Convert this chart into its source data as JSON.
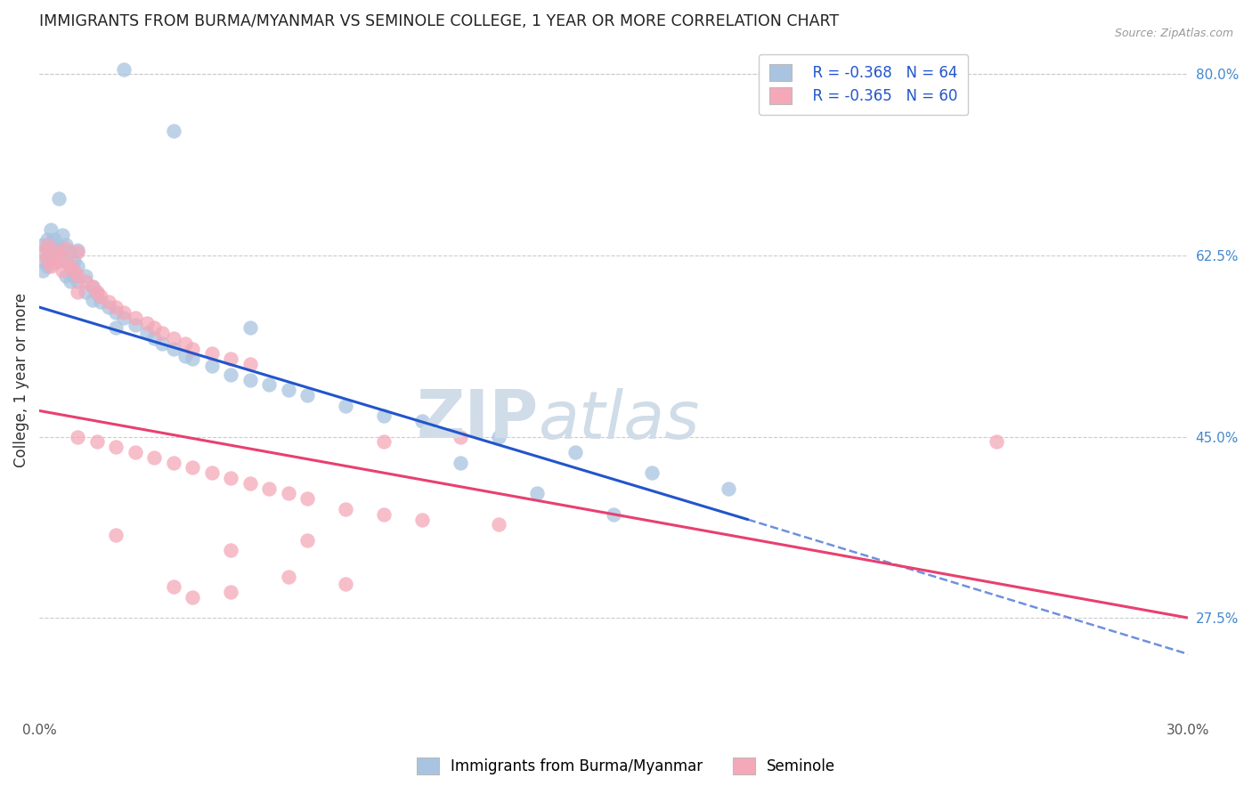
{
  "title": "IMMIGRANTS FROM BURMA/MYANMAR VS SEMINOLE COLLEGE, 1 YEAR OR MORE CORRELATION CHART",
  "source": "Source: ZipAtlas.com",
  "xlabel_bottom_left": "0.0%",
  "xlabel_bottom_right": "30.0%",
  "ylabel": "College, 1 year or more",
  "right_yticks": [
    80.0,
    62.5,
    45.0,
    27.5
  ],
  "legend_blue_R": "R = -0.368",
  "legend_blue_N": "N = 64",
  "legend_pink_R": "R = -0.365",
  "legend_pink_N": "N = 60",
  "legend_label_blue": "Immigrants from Burma/Myanmar",
  "legend_label_pink": "Seminole",
  "blue_color": "#a8c4e0",
  "pink_color": "#f4a8b8",
  "blue_line_color": "#2255cc",
  "pink_line_color": "#e84070",
  "blue_scatter": [
    [
      0.1,
      63.5
    ],
    [
      0.1,
      62.0
    ],
    [
      0.1,
      61.0
    ],
    [
      0.2,
      64.0
    ],
    [
      0.2,
      63.0
    ],
    [
      0.2,
      62.2
    ],
    [
      0.2,
      61.5
    ],
    [
      0.3,
      65.0
    ],
    [
      0.3,
      63.8
    ],
    [
      0.3,
      62.5
    ],
    [
      0.4,
      64.0
    ],
    [
      0.4,
      62.8
    ],
    [
      0.5,
      63.2
    ],
    [
      0.5,
      62.0
    ],
    [
      0.5,
      68.0
    ],
    [
      0.6,
      64.5
    ],
    [
      0.6,
      63.0
    ],
    [
      0.7,
      63.5
    ],
    [
      0.7,
      62.0
    ],
    [
      0.7,
      60.5
    ],
    [
      0.8,
      62.8
    ],
    [
      0.8,
      61.5
    ],
    [
      0.8,
      60.0
    ],
    [
      0.9,
      62.0
    ],
    [
      0.9,
      60.5
    ],
    [
      1.0,
      63.0
    ],
    [
      1.0,
      61.5
    ],
    [
      1.0,
      60.0
    ],
    [
      1.2,
      60.5
    ],
    [
      1.2,
      59.0
    ],
    [
      1.4,
      59.5
    ],
    [
      1.4,
      58.2
    ],
    [
      1.5,
      58.8
    ],
    [
      1.6,
      58.0
    ],
    [
      1.8,
      57.5
    ],
    [
      2.0,
      57.0
    ],
    [
      2.0,
      55.5
    ],
    [
      2.2,
      56.5
    ],
    [
      2.5,
      55.8
    ],
    [
      2.8,
      55.0
    ],
    [
      3.0,
      54.5
    ],
    [
      3.2,
      54.0
    ],
    [
      3.5,
      53.5
    ],
    [
      3.8,
      52.8
    ],
    [
      4.0,
      52.5
    ],
    [
      4.5,
      51.8
    ],
    [
      5.0,
      51.0
    ],
    [
      5.5,
      50.5
    ],
    [
      6.0,
      50.0
    ],
    [
      6.5,
      49.5
    ],
    [
      7.0,
      49.0
    ],
    [
      8.0,
      48.0
    ],
    [
      9.0,
      47.0
    ],
    [
      10.0,
      46.5
    ],
    [
      12.0,
      45.0
    ],
    [
      14.0,
      43.5
    ],
    [
      16.0,
      41.5
    ],
    [
      18.0,
      40.0
    ],
    [
      3.5,
      74.5
    ],
    [
      2.2,
      80.5
    ],
    [
      5.5,
      55.5
    ],
    [
      11.0,
      42.5
    ],
    [
      13.0,
      39.5
    ],
    [
      15.0,
      37.5
    ]
  ],
  "pink_scatter": [
    [
      0.1,
      62.8
    ],
    [
      0.2,
      63.5
    ],
    [
      0.2,
      62.0
    ],
    [
      0.3,
      61.5
    ],
    [
      0.4,
      63.0
    ],
    [
      0.4,
      61.8
    ],
    [
      0.5,
      62.5
    ],
    [
      0.6,
      61.0
    ],
    [
      0.7,
      62.0
    ],
    [
      0.8,
      61.5
    ],
    [
      0.9,
      61.0
    ],
    [
      1.0,
      60.5
    ],
    [
      1.0,
      59.0
    ],
    [
      1.2,
      60.0
    ],
    [
      1.4,
      59.5
    ],
    [
      1.5,
      59.0
    ],
    [
      1.6,
      58.5
    ],
    [
      1.8,
      58.0
    ],
    [
      2.0,
      57.5
    ],
    [
      2.2,
      57.0
    ],
    [
      2.5,
      56.5
    ],
    [
      2.8,
      56.0
    ],
    [
      3.0,
      55.5
    ],
    [
      3.2,
      55.0
    ],
    [
      3.5,
      54.5
    ],
    [
      3.8,
      54.0
    ],
    [
      4.0,
      53.5
    ],
    [
      4.5,
      53.0
    ],
    [
      5.0,
      52.5
    ],
    [
      5.5,
      52.0
    ],
    [
      1.0,
      45.0
    ],
    [
      1.5,
      44.5
    ],
    [
      2.0,
      44.0
    ],
    [
      2.5,
      43.5
    ],
    [
      3.0,
      43.0
    ],
    [
      3.5,
      42.5
    ],
    [
      4.0,
      42.0
    ],
    [
      4.5,
      41.5
    ],
    [
      5.0,
      41.0
    ],
    [
      5.5,
      40.5
    ],
    [
      6.0,
      40.0
    ],
    [
      6.5,
      39.5
    ],
    [
      7.0,
      39.0
    ],
    [
      8.0,
      38.0
    ],
    [
      9.0,
      37.5
    ],
    [
      10.0,
      37.0
    ],
    [
      11.0,
      45.0
    ],
    [
      12.0,
      36.5
    ],
    [
      3.5,
      30.5
    ],
    [
      5.0,
      30.0
    ],
    [
      6.5,
      31.5
    ],
    [
      8.0,
      30.8
    ],
    [
      0.7,
      63.2
    ],
    [
      1.0,
      62.8
    ],
    [
      2.0,
      35.5
    ],
    [
      4.0,
      29.5
    ],
    [
      5.0,
      34.0
    ],
    [
      25.0,
      44.5
    ],
    [
      7.0,
      35.0
    ],
    [
      9.0,
      44.5
    ]
  ],
  "blue_line": {
    "x0": 0.0,
    "y0": 57.5,
    "x1": 18.5,
    "y1": 37.0
  },
  "blue_dash_line": {
    "x0": 18.5,
    "y0": 37.0,
    "x1": 30.0,
    "y1": 24.0
  },
  "pink_line": {
    "x0": 0.0,
    "y0": 47.5,
    "x1": 30.0,
    "y1": 27.5
  },
  "xlim": [
    0.0,
    30.0
  ],
  "ylim": [
    18.0,
    83.0
  ],
  "background_color": "#ffffff",
  "grid_color": "#cccccc",
  "watermark_zip": "ZIP",
  "watermark_atlas": "atlas",
  "watermark_color": "#d0dce8"
}
